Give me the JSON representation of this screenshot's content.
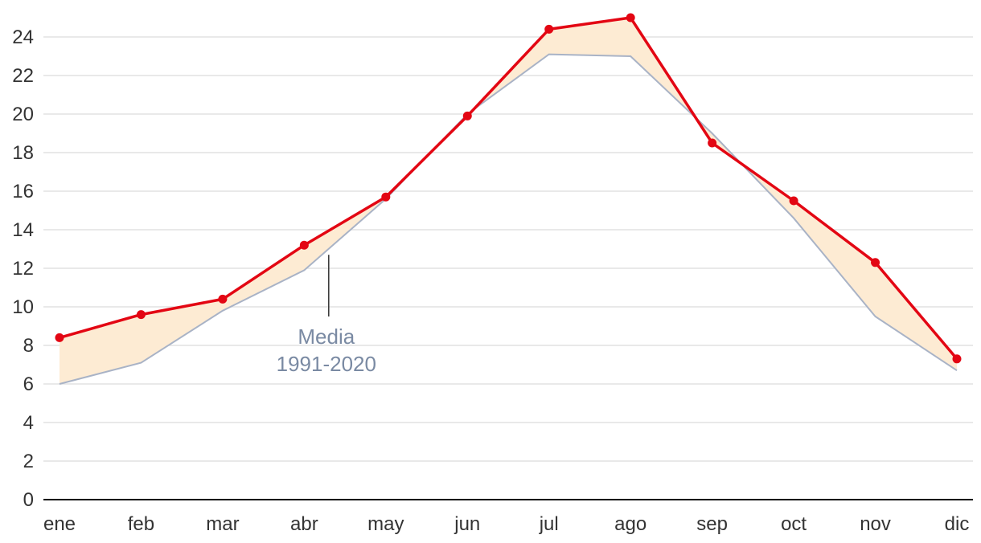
{
  "chart_data": {
    "type": "line",
    "categories": [
      "ene",
      "feb",
      "mar",
      "abr",
      "may",
      "jun",
      "jul",
      "ago",
      "sep",
      "oct",
      "nov",
      "dic"
    ],
    "series": [
      {
        "values": [
          8.4,
          9.6,
          10.4,
          13.2,
          15.7,
          19.9,
          24.4,
          25.0,
          18.5,
          15.5,
          12.3,
          7.3
        ]
      },
      {
        "values": [
          6.0,
          7.1,
          9.8,
          11.9,
          15.6,
          20.0,
          23.1,
          23.0,
          19.0,
          14.6,
          9.5,
          6.7
        ]
      }
    ],
    "ylim": [
      0,
      25
    ],
    "yticks": [
      0,
      2,
      4,
      6,
      8,
      10,
      12,
      14,
      16,
      18,
      20,
      22,
      24
    ],
    "grid": true,
    "annotation": {
      "line1": "Media",
      "line2": "1991-2020"
    },
    "colors": {
      "current": "#e30613",
      "average": "#a9b3c6",
      "fill": "#fdebd3"
    }
  }
}
